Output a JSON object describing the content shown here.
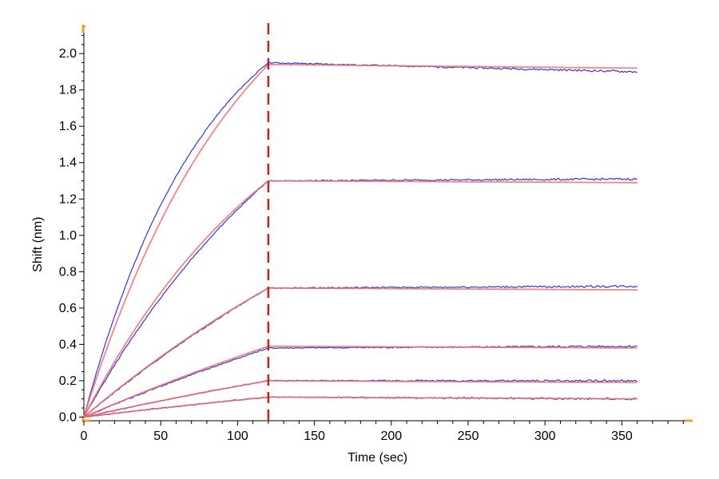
{
  "chart_data": {
    "type": "line",
    "title": "",
    "xlabel": "Time (sec)",
    "ylabel": "Shift (nm)",
    "xlim": [
      0,
      395
    ],
    "ylim": [
      -0.02,
      2.15
    ],
    "xticks": [
      0,
      50,
      100,
      150,
      200,
      250,
      300,
      350
    ],
    "xtick_labels": [
      "0",
      "50",
      "100",
      "150",
      "200",
      "250",
      "300",
      "350"
    ],
    "yticks": [
      0.0,
      0.2,
      0.4,
      0.6,
      0.8,
      1.0,
      1.2,
      1.4,
      1.6,
      1.8,
      2.0
    ],
    "ytick_labels": [
      "0.0",
      "0.2",
      "0.4",
      "0.6",
      "0.8",
      "1.0",
      "1.2",
      "1.4",
      "1.6",
      "1.8",
      "2.0"
    ],
    "grid": false,
    "association_end_time": 120,
    "end_time": 360,
    "colors": {
      "measured": "#2a2ad6",
      "fit": "#f07070",
      "marker_line": "#c81e1e",
      "axis_ends": "#f0a020"
    },
    "series": [
      {
        "role": "measured",
        "association_kobs": 0.0125,
        "plateau_at_120s": 1.95,
        "end_value_at_360s": 1.9
      },
      {
        "role": "fit",
        "association_kobs": 0.0095,
        "plateau_at_120s": 1.94,
        "end_value_at_360s": 1.92
      },
      {
        "role": "measured",
        "association_kobs": 0.006,
        "plateau_at_120s": 1.3,
        "end_value_at_360s": 1.31
      },
      {
        "role": "fit",
        "association_kobs": 0.0075,
        "plateau_at_120s": 1.3,
        "end_value_at_360s": 1.29
      },
      {
        "role": "measured",
        "association_kobs": 0.003,
        "plateau_at_120s": 0.71,
        "end_value_at_360s": 0.72
      },
      {
        "role": "fit",
        "association_kobs": 0.0035,
        "plateau_at_120s": 0.71,
        "end_value_at_360s": 0.7
      },
      {
        "role": "measured",
        "association_kobs": 0.002,
        "plateau_at_120s": 0.38,
        "end_value_at_360s": 0.39
      },
      {
        "role": "fit",
        "association_kobs": 0.0022,
        "plateau_at_120s": 0.39,
        "end_value_at_360s": 0.38
      },
      {
        "role": "measured",
        "association_kobs": 0.002,
        "plateau_at_120s": 0.2,
        "end_value_at_360s": 0.2
      },
      {
        "role": "fit",
        "association_kobs": 0.002,
        "plateau_at_120s": 0.2,
        "end_value_at_360s": 0.19
      },
      {
        "role": "measured",
        "association_kobs": 0.002,
        "plateau_at_120s": 0.11,
        "end_value_at_360s": 0.1
      },
      {
        "role": "fit",
        "association_kobs": 0.002,
        "plateau_at_120s": 0.11,
        "end_value_at_360s": 0.1
      }
    ]
  }
}
